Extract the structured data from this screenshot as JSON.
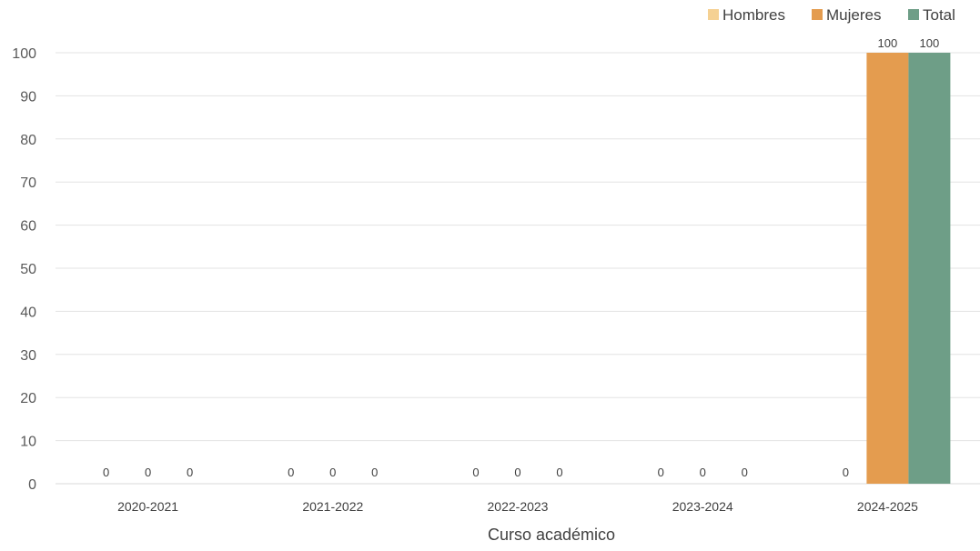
{
  "chart_data": {
    "type": "bar",
    "title": "",
    "xlabel": "Curso académico",
    "ylabel": "",
    "ylim": [
      0,
      100
    ],
    "yticks": [
      0,
      10,
      20,
      30,
      40,
      50,
      60,
      70,
      80,
      90,
      100
    ],
    "grid": true,
    "legend_position": "top-right",
    "categories": [
      "2020-2021",
      "2021-2022",
      "2022-2023",
      "2023-2024",
      "2024-2025"
    ],
    "series": [
      {
        "name": "Hombres",
        "color": "#F5D193",
        "values": [
          0,
          0,
          0,
          0,
          0
        ]
      },
      {
        "name": "Mujeres",
        "color": "#E49C4F",
        "values": [
          0,
          0,
          0,
          0,
          100
        ]
      },
      {
        "name": "Total",
        "color": "#6E9E87",
        "values": [
          0,
          0,
          0,
          0,
          100
        ]
      }
    ],
    "data_labels": [
      [
        "0",
        "0",
        "0"
      ],
      [
        "0",
        "0",
        "0"
      ],
      [
        "0",
        "0",
        "0"
      ],
      [
        "0",
        "0",
        "0"
      ],
      [
        "0",
        "100",
        "100"
      ]
    ]
  }
}
